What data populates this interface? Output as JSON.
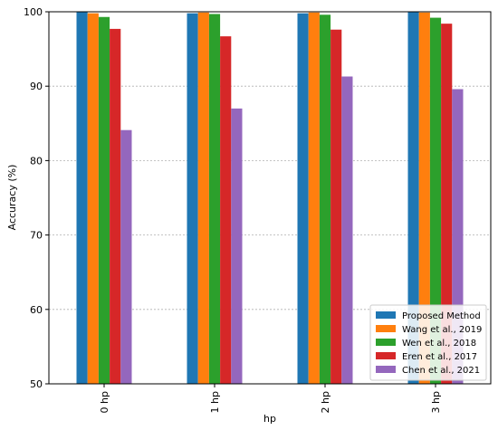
{
  "chart_data": {
    "type": "bar",
    "title": "",
    "xlabel": "hp",
    "ylabel": "Accuracy (%)",
    "ylim": [
      50,
      100
    ],
    "yticks": [
      50,
      60,
      70,
      80,
      90,
      100
    ],
    "grid": "horizontal dotted",
    "legend_position": "bottom-right",
    "categories": [
      "0 hp",
      "1 hp",
      "2 hp",
      "3 hp"
    ],
    "series": [
      {
        "name": "Proposed Method",
        "color": "#1f77b4",
        "values": [
          100.0,
          99.8,
          99.8,
          100.0
        ]
      },
      {
        "name": "Wang et al., 2019",
        "color": "#ff7f0e",
        "values": [
          99.8,
          99.9,
          99.9,
          99.9
        ]
      },
      {
        "name": "Wen et al., 2018",
        "color": "#2ca02c",
        "values": [
          99.3,
          99.7,
          99.6,
          99.2
        ]
      },
      {
        "name": "Eren et al., 2017",
        "color": "#d62728",
        "values": [
          97.7,
          96.7,
          97.6,
          98.4
        ]
      },
      {
        "name": "Chen et al., 2021",
        "color": "#9467bd",
        "values": [
          84.1,
          87.0,
          91.3,
          89.6
        ]
      }
    ]
  }
}
